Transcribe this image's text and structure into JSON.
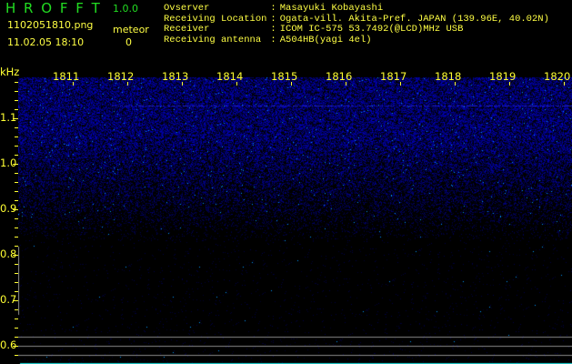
{
  "header": {
    "app_title": "H R O F F T",
    "version": "1.0.0",
    "filename": "1102051810.png",
    "datetime": "11.02.05 18:10",
    "meteor_label": "meteor",
    "meteor_count": "0"
  },
  "info": [
    {
      "label": "Ovserver",
      "value": "Masayuki Kobayashi"
    },
    {
      "label": "Receiving Location",
      "value": "Ogata-vill. Akita-Pref. JAPAN (139.96E, 40.02N)"
    },
    {
      "label": "Receiver",
      "value": "ICOM IC-575 53.7492(@LCD)MHz USB"
    },
    {
      "label": "Receiving antenna",
      "value": "A504HB(yagi 4el)"
    }
  ],
  "spectrogram": {
    "y_unit": "kHz",
    "time_ticks": [
      "1811",
      "1812",
      "1813",
      "1814",
      "1815",
      "1816",
      "1817",
      "1818",
      "1819",
      "1820"
    ],
    "freq_ticks": [
      "1.1",
      "1.0",
      "0.9",
      "0.8",
      "0.7",
      "0.6"
    ],
    "colors": {
      "text": "#ffff33",
      "signal": "#2020ff",
      "title": "#22dd22",
      "baseline": "#22dddd"
    }
  }
}
